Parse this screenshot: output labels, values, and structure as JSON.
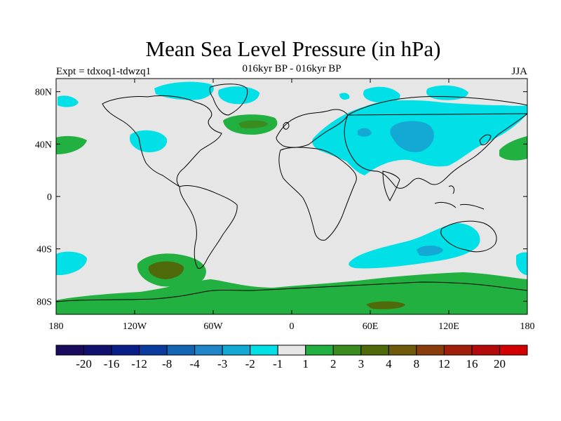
{
  "figure": {
    "title": "Mean Sea Level Pressure (in hPa)",
    "left_subtitle": "Expt = tdxoq1-tdwzq1",
    "center_subtitle": "016kyr BP - 016kyr BP",
    "right_subtitle": "JJA"
  },
  "map": {
    "projection": "cylindrical-equidistant",
    "lon_range": [
      -180,
      180
    ],
    "lat_range": [
      -90,
      90
    ],
    "background_color": "#e6e6e6",
    "x_ticks": [
      {
        "lon": -180,
        "label": "180"
      },
      {
        "lon": -120,
        "label": "120W"
      },
      {
        "lon": -60,
        "label": "60W"
      },
      {
        "lon": 0,
        "label": "0"
      },
      {
        "lon": 60,
        "label": "60E"
      },
      {
        "lon": 120,
        "label": "120E"
      },
      {
        "lon": 180,
        "label": "180"
      }
    ],
    "y_ticks": [
      {
        "lat": 80,
        "label": "80N"
      },
      {
        "lat": 40,
        "label": "40N"
      },
      {
        "lat": 0,
        "label": "0"
      },
      {
        "lat": -40,
        "label": "40S"
      },
      {
        "lat": -80,
        "label": "80S"
      }
    ]
  },
  "colorbar": {
    "colors": [
      "#1a0a5e",
      "#10106e",
      "#0a1e8a",
      "#0a3ca0",
      "#1464b4",
      "#1e86c8",
      "#14a8d4",
      "#00e0e6",
      "#e6e6e6",
      "#22b040",
      "#3a8c1e",
      "#4e6a0a",
      "#6e5a0a",
      "#8a3c0a",
      "#a01e0a",
      "#b40a0a",
      "#d20000"
    ],
    "labels": [
      "-20",
      "-16",
      "-12",
      "-8",
      "-4",
      "-3",
      "-2",
      "-1",
      "1",
      "2",
      "3",
      "4",
      "8",
      "12",
      "16",
      "20"
    ]
  },
  "chart_data": {
    "type": "filled-contour-map",
    "variable": "Mean Sea Level Pressure difference (hPa)",
    "experiment": "tdxoq1-tdwzq1",
    "season": "JJA",
    "anomaly_regions": [
      {
        "name": "Eurasia low",
        "lon": [
          40,
          150
        ],
        "lat": [
          20,
          65
        ],
        "range": "-1 to -2",
        "core": "-2 to -3"
      },
      {
        "name": "Arctic low",
        "lon": [
          -110,
          -20
        ],
        "lat": [
          65,
          88
        ],
        "range": "-1 to -2"
      },
      {
        "name": "North Atlantic high",
        "lon": [
          -48,
          -8
        ],
        "lat": [
          52,
          70
        ],
        "range": "1 to 2",
        "core": "2 to 3"
      },
      {
        "name": "North Pacific low",
        "lon": [
          -130,
          -100
        ],
        "lat": [
          33,
          50
        ],
        "range": "-1 to -2"
      },
      {
        "name": "West Pacific high",
        "lon": [
          150,
          180
        ],
        "lat": [
          30,
          48
        ],
        "range": "1 to 2"
      },
      {
        "name": "South Pacific high",
        "lon": [
          -140,
          -60
        ],
        "lat": [
          -70,
          -42
        ],
        "range": "1 to 2",
        "core": "2 to 3"
      },
      {
        "name": "Southern Indian Ocean low",
        "lon": [
          30,
          135
        ],
        "lat": [
          -58,
          -22
        ],
        "range": "-1 to -2",
        "core": "-2 to -3"
      },
      {
        "name": "Southern Ocean high",
        "lon": [
          -140,
          180
        ],
        "lat": [
          -90,
          -58
        ],
        "range": "1 to 2",
        "core": "2 to 3"
      },
      {
        "name": "Southeast Pacific low",
        "lon": [
          -180,
          -150
        ],
        "lat": [
          -60,
          -40
        ],
        "range": "-1 to -2"
      }
    ]
  }
}
